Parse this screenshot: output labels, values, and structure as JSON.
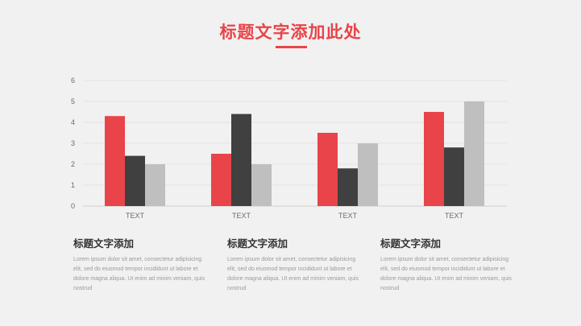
{
  "page": {
    "title": "标题文字添加此处",
    "accent_color": "#e84449"
  },
  "chart_data": {
    "type": "bar",
    "categories": [
      "TEXT",
      "TEXT",
      "TEXT",
      "TEXT"
    ],
    "series": [
      {
        "values": [
          4.3,
          2.5,
          3.5,
          4.5
        ],
        "color": "#e84449"
      },
      {
        "values": [
          2.4,
          4.4,
          1.8,
          2.8
        ],
        "color": "#404040"
      },
      {
        "values": [
          2.0,
          2.0,
          3.0,
          5.0
        ],
        "color": "#bfbfbf"
      }
    ],
    "yticks": [
      0,
      1,
      2,
      3,
      4,
      5,
      6
    ],
    "ylim": [
      0,
      6
    ],
    "grid": true,
    "legend": "none"
  },
  "text_blocks": [
    {
      "title": "标题文字添加",
      "body": "Lorem ipsum dolor sit amet, consectetur adipisicing elit, sed do eiusmod tempor incididunt ut labore et dolore magna aliqua. Ut enim ad minim veniam, quis nostrud"
    },
    {
      "title": "标题文字添加",
      "body": "Lorem ipsum dolor sit amet, consectetur adipisicing elit, sed do eiusmod tempor incididunt ut labore et dolore magna aliqua. Ut enim ad minim veniam, quis nostrud"
    },
    {
      "title": "标题文字添加",
      "body": "Lorem ipsum dolor sit amet, consectetur adipisicing elit, sed do eiusmod tempor incididunt ut labore et dolore magna aliqua. Ut enim ad minim veniam, quis nostrud"
    }
  ]
}
